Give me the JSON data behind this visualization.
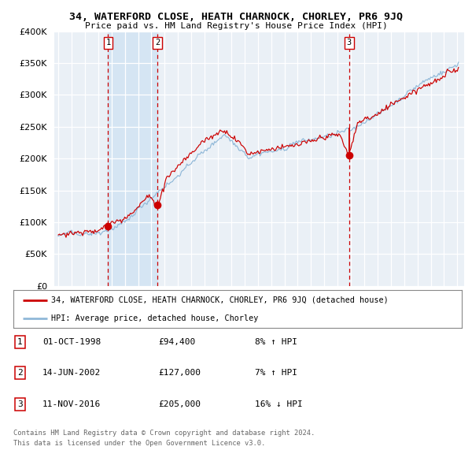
{
  "title": "34, WATERFORD CLOSE, HEATH CHARNOCK, CHORLEY, PR6 9JQ",
  "subtitle": "Price paid vs. HM Land Registry's House Price Index (HPI)",
  "legend_red": "34, WATERFORD CLOSE, HEATH CHARNOCK, CHORLEY, PR6 9JQ (detached house)",
  "legend_blue": "HPI: Average price, detached house, Chorley",
  "table_rows": [
    {
      "num": "1",
      "date": "01-OCT-1998",
      "price": "£94,400",
      "hpi": "8% ↑ HPI"
    },
    {
      "num": "2",
      "date": "14-JUN-2002",
      "price": "£127,000",
      "hpi": "7% ↑ HPI"
    },
    {
      "num": "3",
      "date": "11-NOV-2016",
      "price": "£205,000",
      "hpi": "16% ↓ HPI"
    }
  ],
  "transactions_year": [
    1998.75,
    2002.46,
    2016.87
  ],
  "transactions_price": [
    94400,
    127000,
    205000
  ],
  "footnote1": "Contains HM Land Registry data © Crown copyright and database right 2024.",
  "footnote2": "This data is licensed under the Open Government Licence v3.0.",
  "ylim": [
    0,
    400000
  ],
  "yticks": [
    0,
    50000,
    100000,
    150000,
    200000,
    250000,
    300000,
    350000,
    400000
  ],
  "xlim_left": 1994.7,
  "xlim_right": 2025.5,
  "xticks": [
    1995,
    1996,
    1997,
    1998,
    1999,
    2000,
    2001,
    2002,
    2003,
    2004,
    2005,
    2006,
    2007,
    2008,
    2009,
    2010,
    2011,
    2012,
    2013,
    2014,
    2015,
    2016,
    2017,
    2018,
    2019,
    2020,
    2021,
    2022,
    2023,
    2024,
    2025
  ],
  "plot_bg": "#eaf0f6",
  "grid_color": "#ffffff",
  "red_color": "#cc0000",
  "blue_color": "#90b8d8",
  "highlight_bg": "#d5e5f3",
  "fig_bg": "#ffffff",
  "spine_color": "#aaaaaa"
}
